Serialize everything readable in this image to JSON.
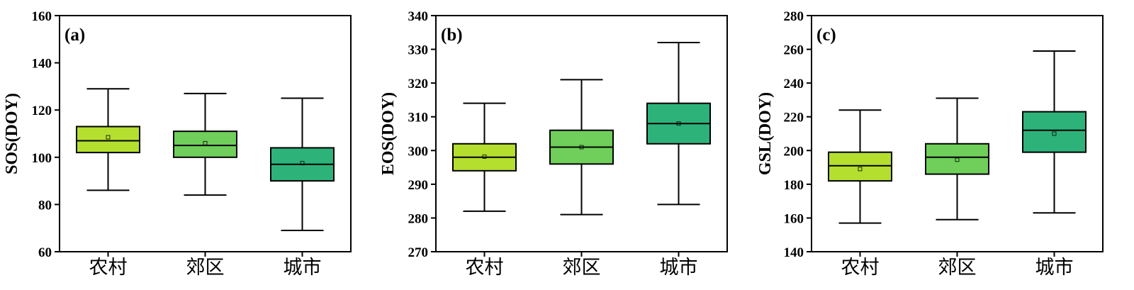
{
  "chart_data": [
    {
      "type": "box",
      "panel_label": "(a)",
      "ylabel": "SOS(DOY)",
      "ylim": [
        60,
        160
      ],
      "yticks": [
        60,
        80,
        100,
        120,
        140,
        160
      ],
      "categories": [
        "农村",
        "郊区",
        "城市"
      ],
      "boxes": [
        {
          "category": "农村",
          "whisker_low": 86,
          "q1": 102,
          "median": 107,
          "q3": 113,
          "whisker_high": 129,
          "mean": 108.5,
          "color": "#b5df2e"
        },
        {
          "category": "郊区",
          "whisker_low": 84,
          "q1": 100,
          "median": 105,
          "q3": 111,
          "whisker_high": 127,
          "mean": 106,
          "color": "#6fcf5a"
        },
        {
          "category": "城市",
          "whisker_low": 69,
          "q1": 90,
          "median": 97,
          "q3": 104,
          "whisker_high": 125,
          "mean": 97.5,
          "color": "#2db37a"
        }
      ]
    },
    {
      "type": "box",
      "panel_label": "(b)",
      "ylabel": "EOS(DOY)",
      "ylim": [
        270,
        340
      ],
      "yticks": [
        270,
        280,
        290,
        300,
        310,
        320,
        330,
        340
      ],
      "categories": [
        "农村",
        "郊区",
        "城市"
      ],
      "boxes": [
        {
          "category": "农村",
          "whisker_low": 282,
          "q1": 294,
          "median": 298,
          "q3": 302,
          "whisker_high": 314,
          "mean": 298.2,
          "color": "#b5df2e"
        },
        {
          "category": "郊区",
          "whisker_low": 281,
          "q1": 296,
          "median": 301,
          "q3": 306,
          "whisker_high": 321,
          "mean": 301,
          "color": "#6fcf5a"
        },
        {
          "category": "城市",
          "whisker_low": 284,
          "q1": 302,
          "median": 308,
          "q3": 314,
          "whisker_high": 332,
          "mean": 308,
          "color": "#2db37a"
        }
      ]
    },
    {
      "type": "box",
      "panel_label": "(c)",
      "ylabel": "GSL(DOY)",
      "ylim": [
        140,
        280
      ],
      "yticks": [
        140,
        160,
        180,
        200,
        220,
        240,
        260,
        280
      ],
      "categories": [
        "农村",
        "郊区",
        "城市"
      ],
      "boxes": [
        {
          "category": "农村",
          "whisker_low": 157,
          "q1": 182,
          "median": 191,
          "q3": 199,
          "whisker_high": 224,
          "mean": 189,
          "color": "#b5df2e"
        },
        {
          "category": "郊区",
          "whisker_low": 159,
          "q1": 186,
          "median": 196,
          "q3": 204,
          "whisker_high": 231,
          "mean": 194.5,
          "color": "#6fcf5a"
        },
        {
          "category": "城市",
          "whisker_low": 163,
          "q1": 199,
          "median": 212,
          "q3": 223,
          "whisker_high": 259,
          "mean": 210,
          "color": "#2db37a"
        }
      ]
    }
  ]
}
